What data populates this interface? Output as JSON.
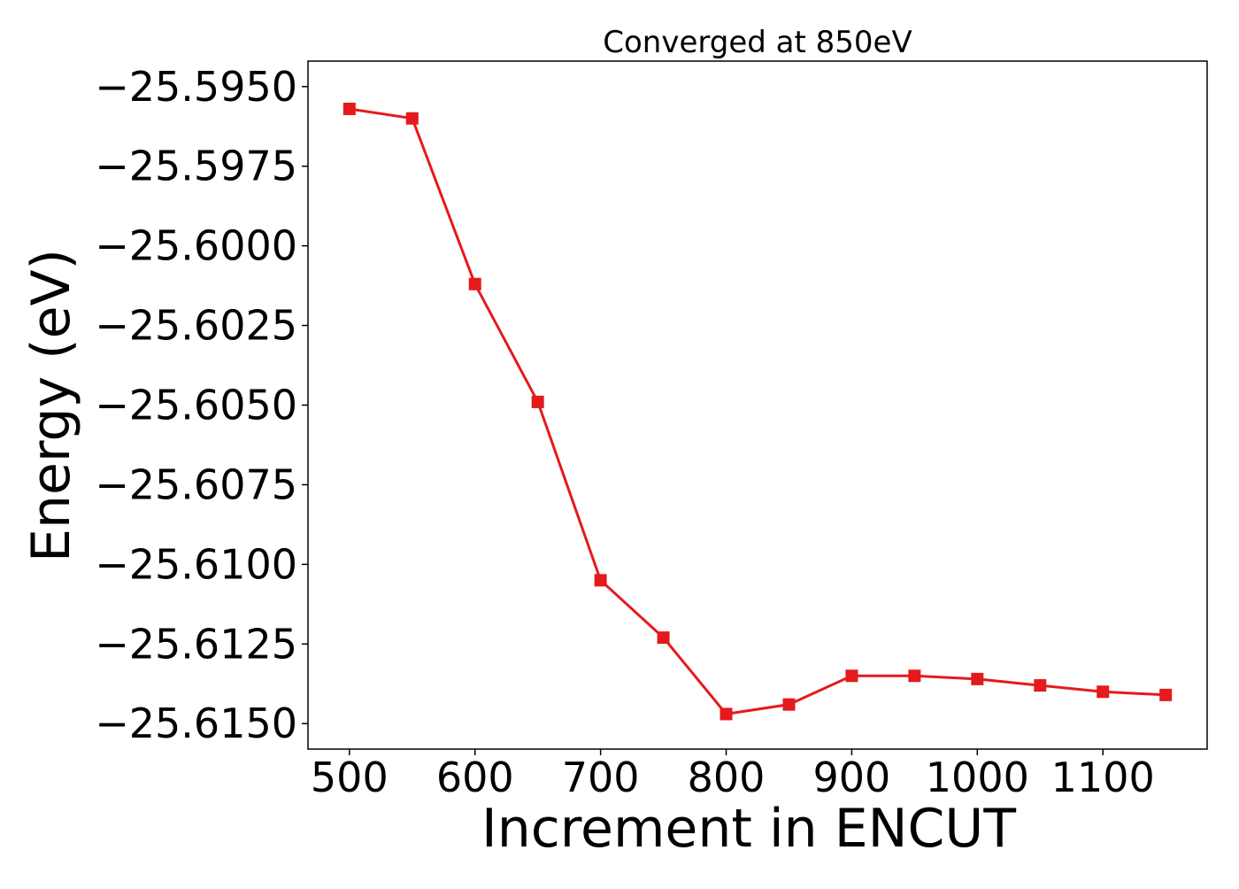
{
  "chart_data": {
    "type": "line",
    "title": "Converged at 850eV",
    "xlabel": "Increment in ENCUT",
    "ylabel": "Energy (eV)",
    "x": [
      500,
      550,
      600,
      650,
      700,
      750,
      800,
      850,
      900,
      950,
      1000,
      1050,
      1100,
      1150
    ],
    "series": [
      {
        "values": [
          -25.5957,
          -25.596,
          -25.6012,
          -25.6049,
          -25.6105,
          -25.6123,
          -25.6147,
          -25.6144,
          -25.6135,
          -25.6135,
          -25.6136,
          -25.6138,
          -25.614,
          -25.6141
        ],
        "color": "#e41a1c",
        "marker": "square"
      }
    ],
    "xlim": [
      467,
      1183
    ],
    "ylim": [
      -25.6158,
      -25.5942
    ],
    "xticks": [
      500,
      600,
      700,
      800,
      900,
      1000,
      1100
    ],
    "xtick_labels": [
      "500",
      "600",
      "700",
      "800",
      "900",
      "1000",
      "1100"
    ],
    "yticks": [
      -25.595,
      -25.5975,
      -25.6,
      -25.6025,
      -25.605,
      -25.6075,
      -25.61,
      -25.6125,
      -25.615
    ],
    "ytick_labels": [
      "−25.5950",
      "−25.5975",
      "−25.6000",
      "−25.6025",
      "−25.6050",
      "−25.6075",
      "−25.6100",
      "−25.6125",
      "−25.6150"
    ],
    "grid": false,
    "legend": "none"
  }
}
